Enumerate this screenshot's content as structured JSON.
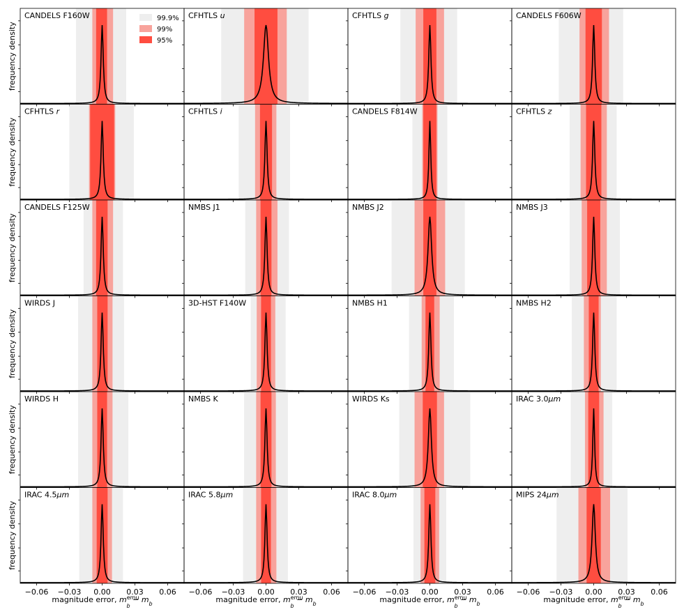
{
  "chart_data": {
    "type": "area",
    "layout": "6x4 grid of panels",
    "ylabel": "frequency density",
    "xlabel": {
      "main": "magnitude error, ",
      "math_a": "m",
      "sub_a": "b",
      "sup_a": "emu",
      "mid": " − ",
      "math_b": "m",
      "sub_b": "b"
    },
    "xlim": [
      -0.075,
      0.075
    ],
    "xticks": [
      -0.06,
      -0.03,
      0.0,
      0.03,
      0.06
    ],
    "xtick_labels": [
      "−0.06",
      "−0.03",
      "0.00",
      "0.03",
      "0.06"
    ],
    "legend": [
      {
        "label": "99.9%",
        "color": "#eeeeee"
      },
      {
        "label": "99%",
        "color": "#f8a39c"
      },
      {
        "label": "95%",
        "color": "#ff4d40"
      }
    ],
    "legend_position": "top-right of first panel",
    "curve_color": "#000000",
    "panels": [
      {
        "name": "CANDELS F160W",
        "peak": 0.0,
        "width": 0.0012,
        "band95": [
          -0.0055,
          0.0045
        ],
        "band99": [
          -0.009,
          0.01
        ],
        "band999": [
          -0.024,
          0.022
        ]
      },
      {
        "name": "CFHTLS ",
        "italic": "u",
        "peak": 0.0,
        "width": 0.0028,
        "band95": [
          -0.0105,
          0.0105
        ],
        "band99": [
          -0.02,
          0.019
        ],
        "band999": [
          -0.041,
          0.039
        ]
      },
      {
        "name": "CFHTLS ",
        "italic": "g",
        "peak": 0.0,
        "width": 0.0012,
        "band95": [
          -0.006,
          0.006
        ],
        "band99": [
          -0.013,
          0.013
        ],
        "band999": [
          -0.027,
          0.025
        ]
      },
      {
        "name": "CANDELS F606W",
        "peak": 0.0,
        "width": 0.0012,
        "band95": [
          -0.0075,
          0.0075
        ],
        "band99": [
          -0.013,
          0.014
        ],
        "band999": [
          -0.032,
          0.027
        ]
      },
      {
        "name": "CFHTLS ",
        "italic": "r",
        "peak": 0.0,
        "width": 0.0012,
        "band95": [
          -0.011,
          0.011
        ],
        "band99": [
          -0.012,
          0.012
        ],
        "band999": [
          -0.03,
          0.029
        ]
      },
      {
        "name": "CFHTLS ",
        "italic": "i",
        "peak": 0.0,
        "width": 0.0012,
        "band95": [
          -0.0055,
          0.0055
        ],
        "band99": [
          -0.01,
          0.0095
        ],
        "band999": [
          -0.025,
          0.022
        ]
      },
      {
        "name": "CANDELS F814W",
        "peak": 0.0,
        "width": 0.001,
        "band95": [
          -0.006,
          0.006
        ],
        "band99": [
          -0.007,
          0.007
        ],
        "band999": [
          -0.016,
          0.016
        ]
      },
      {
        "name": "CFHTLS ",
        "italic": "z",
        "peak": 0.0,
        "width": 0.0012,
        "band95": [
          -0.007,
          0.007
        ],
        "band99": [
          -0.012,
          0.012
        ],
        "band999": [
          -0.022,
          0.021
        ]
      },
      {
        "name": "CANDELS F125W",
        "peak": 0.0,
        "width": 0.0012,
        "band95": [
          -0.0055,
          0.005
        ],
        "band99": [
          -0.009,
          0.01
        ],
        "band999": [
          -0.017,
          0.019
        ]
      },
      {
        "name": "NMBS J1",
        "peak": 0.0,
        "width": 0.0012,
        "band95": [
          -0.005,
          0.005
        ],
        "band99": [
          -0.009,
          0.0105
        ],
        "band999": [
          -0.019,
          0.021
        ]
      },
      {
        "name": "NMBS J2",
        "peak": 0.0,
        "width": 0.002,
        "band95": [
          -0.006,
          0.006
        ],
        "band99": [
          -0.014,
          0.014
        ],
        "band999": [
          -0.035,
          0.032
        ]
      },
      {
        "name": "NMBS J3",
        "peak": 0.0,
        "width": 0.0012,
        "band95": [
          -0.006,
          0.006
        ],
        "band99": [
          -0.011,
          0.012
        ],
        "band999": [
          -0.022,
          0.024
        ]
      },
      {
        "name": "WIRDS J",
        "peak": 0.0,
        "width": 0.0012,
        "band95": [
          -0.0045,
          0.005
        ],
        "band99": [
          -0.009,
          0.0095
        ],
        "band999": [
          -0.022,
          0.02
        ]
      },
      {
        "name": "3D-HST F140W",
        "peak": 0.0,
        "width": 0.0012,
        "band95": [
          -0.0045,
          0.0045
        ],
        "band99": [
          -0.0085,
          0.0085
        ],
        "band999": [
          -0.014,
          0.018
        ]
      },
      {
        "name": "NMBS H1",
        "peak": 0.0,
        "width": 0.0012,
        "band95": [
          -0.004,
          0.004
        ],
        "band99": [
          -0.0075,
          0.009
        ],
        "band999": [
          -0.019,
          0.022
        ]
      },
      {
        "name": "NMBS H2",
        "peak": 0.0,
        "width": 0.0012,
        "band95": [
          -0.0045,
          0.0045
        ],
        "band99": [
          -0.009,
          0.0065
        ],
        "band999": [
          -0.02,
          0.021
        ]
      },
      {
        "name": "WIRDS H",
        "peak": 0.0,
        "width": 0.0012,
        "band95": [
          -0.0045,
          0.0045
        ],
        "band99": [
          -0.009,
          0.0095
        ],
        "band999": [
          -0.022,
          0.024
        ]
      },
      {
        "name": "NMBS K",
        "peak": 0.0,
        "width": 0.0012,
        "band95": [
          -0.005,
          0.005
        ],
        "band99": [
          -0.009,
          0.009
        ],
        "band999": [
          -0.02,
          0.02
        ]
      },
      {
        "name": "WIRDS Ks",
        "peak": 0.0,
        "width": 0.0017,
        "band95": [
          -0.0065,
          0.0065
        ],
        "band99": [
          -0.014,
          0.013
        ],
        "band999": [
          -0.028,
          0.037
        ]
      },
      {
        "name": "IRAC 3.0",
        "mu": "μm",
        "peak": 0.0,
        "width": 0.001,
        "band95": [
          -0.005,
          0.005
        ],
        "band99": [
          -0.008,
          0.009
        ],
        "band999": [
          -0.021,
          0.017
        ]
      },
      {
        "name": "IRAC 4.5",
        "mu": "μm",
        "peak": 0.0,
        "width": 0.0012,
        "band95": [
          -0.005,
          0.005
        ],
        "band99": [
          -0.009,
          0.009
        ],
        "band999": [
          -0.021,
          0.019
        ]
      },
      {
        "name": "IRAC 5.8",
        "mu": "μm",
        "peak": 0.0,
        "width": 0.0012,
        "band95": [
          -0.0045,
          0.0045
        ],
        "band99": [
          -0.009,
          0.0095
        ],
        "band999": [
          -0.021,
          0.02
        ]
      },
      {
        "name": "IRAC 8.0",
        "mu": "μm",
        "peak": 0.0,
        "width": 0.0012,
        "band95": [
          -0.005,
          0.005
        ],
        "band99": [
          -0.0085,
          0.0085
        ],
        "band999": [
          -0.015,
          0.015
        ]
      },
      {
        "name": "MIPS 24",
        "mu": "μm",
        "peak": 0.0,
        "width": 0.0018,
        "band95": [
          -0.0065,
          0.0065
        ],
        "band99": [
          -0.014,
          0.015
        ],
        "band999": [
          -0.034,
          0.031
        ]
      }
    ]
  }
}
